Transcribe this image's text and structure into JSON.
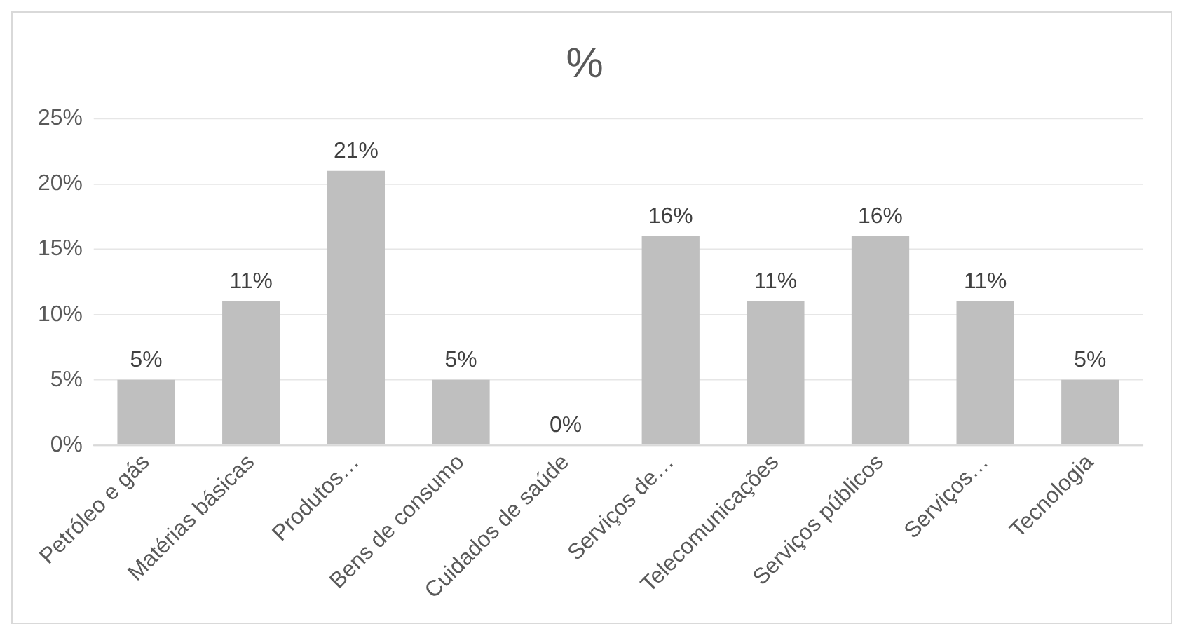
{
  "chart_data": {
    "type": "bar",
    "title": "%",
    "categories": [
      "Petróleo e gás",
      "Matérias básicas",
      "Produtos…",
      "Bens de consumo",
      "Cuidados de saúde",
      "Serviços de…",
      "Telecomunicações",
      "Serviços públicos",
      "Serviços…",
      "Tecnologia"
    ],
    "values": [
      5,
      11,
      21,
      5,
      0,
      16,
      11,
      16,
      11,
      5
    ],
    "color": "#bfbfbf",
    "ylim": [
      0,
      25
    ],
    "yticks": [
      {
        "value": 0,
        "label": "0%"
      },
      {
        "value": 5,
        "label": "5%"
      },
      {
        "value": 10,
        "label": "10%"
      },
      {
        "value": 15,
        "label": "15%"
      },
      {
        "value": 20,
        "label": "20%"
      },
      {
        "value": 25,
        "label": "25%"
      }
    ],
    "value_labels": [
      "5%",
      "11%",
      "21%",
      "5%",
      "0%",
      "16%",
      "11%",
      "16%",
      "11%",
      "5%"
    ],
    "grid": "y",
    "legend": false
  }
}
